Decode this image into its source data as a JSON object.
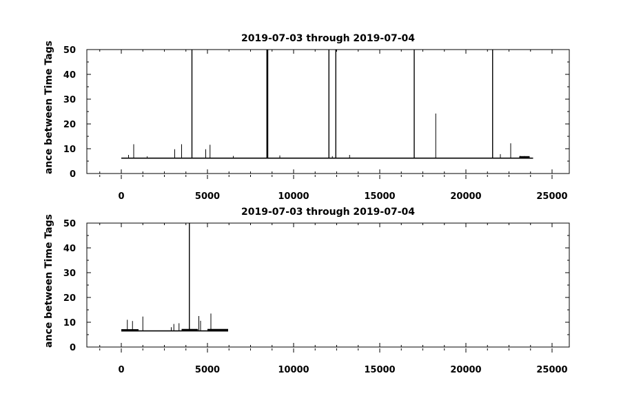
{
  "chart_data": [
    {
      "type": "line",
      "title": "2019-07-03 through 2019-07-04",
      "ylabel": "ance between Time Tags",
      "xlabel": "",
      "xlim": [
        -2000,
        26000
      ],
      "ylim": [
        0,
        50
      ],
      "x_ticks": [
        0,
        5000,
        10000,
        15000,
        20000,
        25000
      ],
      "y_ticks": [
        0,
        10,
        20,
        30,
        40,
        50
      ],
      "grid": false,
      "baseline": 6.2,
      "x_range": [
        0,
        23900
      ],
      "spikes": [
        {
          "x": 420,
          "y": 7.5
        },
        {
          "x": 720,
          "y": 11.8
        },
        {
          "x": 1500,
          "y": 6.9
        },
        {
          "x": 3100,
          "y": 9.8
        },
        {
          "x": 3500,
          "y": 11.8
        },
        {
          "x": 4100,
          "y": 50
        },
        {
          "x": 4900,
          "y": 9.8
        },
        {
          "x": 5150,
          "y": 11.6
        },
        {
          "x": 6500,
          "y": 7.1
        },
        {
          "x": 8450,
          "y": 50
        },
        {
          "x": 8500,
          "y": 50
        },
        {
          "x": 9200,
          "y": 7.3
        },
        {
          "x": 12050,
          "y": 50
        },
        {
          "x": 12250,
          "y": 7.0
        },
        {
          "x": 12450,
          "y": 50
        },
        {
          "x": 13250,
          "y": 7.5
        },
        {
          "x": 17000,
          "y": 50
        },
        {
          "x": 18250,
          "y": 24.2
        },
        {
          "x": 21550,
          "y": 50
        },
        {
          "x": 22000,
          "y": 7.8
        },
        {
          "x": 22600,
          "y": 12.2
        },
        {
          "x": 23150,
          "y": 7.1
        },
        {
          "x": 23400,
          "y": 7.0
        }
      ],
      "bands": [
        {
          "x0": 23100,
          "x1": 23700,
          "y0": 6.2,
          "y1": 7.0
        }
      ]
    },
    {
      "type": "line",
      "title": "2019-07-03 through 2019-07-04",
      "ylabel": "ance between Time Tags",
      "xlabel": "",
      "xlim": [
        -2000,
        26000
      ],
      "ylim": [
        0,
        50
      ],
      "x_ticks": [
        0,
        5000,
        10000,
        15000,
        20000,
        25000
      ],
      "y_ticks": [
        0,
        10,
        20,
        30,
        40,
        50
      ],
      "grid": false,
      "baseline": 6.5,
      "x_range": [
        0,
        6200
      ],
      "spikes": [
        {
          "x": 350,
          "y": 11.0
        },
        {
          "x": 650,
          "y": 10.5
        },
        {
          "x": 1250,
          "y": 12.3
        },
        {
          "x": 2900,
          "y": 8.0
        },
        {
          "x": 3050,
          "y": 9.3
        },
        {
          "x": 3350,
          "y": 9.6
        },
        {
          "x": 3950,
          "y": 50
        },
        {
          "x": 4500,
          "y": 12.5
        },
        {
          "x": 4600,
          "y": 10.6
        },
        {
          "x": 5200,
          "y": 13.5
        }
      ],
      "bands": [
        {
          "x0": 0,
          "x1": 1000,
          "y0": 6.3,
          "y1": 7.2
        },
        {
          "x0": 3500,
          "x1": 4450,
          "y0": 6.4,
          "y1": 7.3
        },
        {
          "x0": 5000,
          "x1": 6200,
          "y0": 6.3,
          "y1": 7.3
        }
      ]
    }
  ]
}
